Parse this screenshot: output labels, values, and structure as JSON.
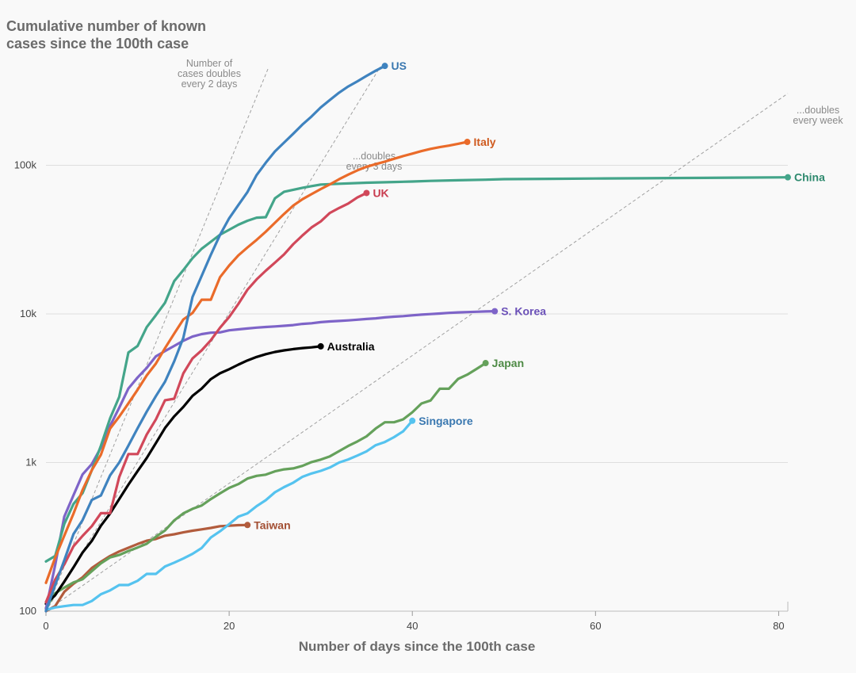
{
  "chart_data": {
    "type": "line",
    "title_lines": [
      "Cumulative number of known",
      "cases since the 100th case"
    ],
    "xlabel": "Number of days since the 100th case",
    "ylabel": "",
    "y_scale": "log",
    "xlim": [
      0,
      81
    ],
    "ylim": [
      100,
      500000
    ],
    "x_ticks": [
      0,
      20,
      40,
      60,
      80
    ],
    "x_tick_labels": [
      "0",
      "20",
      "40",
      "60",
      "80"
    ],
    "y_ticks": [
      100,
      1000,
      10000,
      100000
    ],
    "y_tick_labels": [
      "100",
      "1k",
      "10k",
      "100k"
    ],
    "grid": "horizontal",
    "reference_lines": [
      {
        "label": [
          "Number of",
          "cases doubles",
          "every 2 days"
        ],
        "doubling_days": 2
      },
      {
        "label": [
          "...doubles",
          "every 3 days"
        ],
        "doubling_days": 3
      },
      {
        "label": [
          "...doubles",
          "every week"
        ],
        "doubling_days": 7
      }
    ],
    "series": [
      {
        "name": "US",
        "color": "#3f83bf",
        "x": [
          0,
          1,
          2,
          3,
          4,
          5,
          6,
          7,
          8,
          9,
          10,
          11,
          12,
          13,
          14,
          15,
          16,
          17,
          18,
          19,
          20,
          21,
          22,
          23,
          24,
          25,
          26,
          27,
          28,
          29,
          30,
          31,
          32,
          33,
          34,
          35,
          36,
          37
        ],
        "y": [
          100,
          150,
          220,
          330,
          410,
          560,
          600,
          820,
          1000,
          1300,
          1700,
          2200,
          2800,
          3500,
          4800,
          6900,
          13000,
          18000,
          25000,
          34000,
          44000,
          54000,
          66000,
          86000,
          104000,
          124000,
          142000,
          163000,
          188000,
          213000,
          245000,
          275000,
          308000,
          339000,
          367000,
          399000,
          433000,
          466000
        ]
      },
      {
        "name": "Italy",
        "color": "#ea6b2a",
        "x": [
          0,
          1,
          2,
          3,
          4,
          5,
          6,
          7,
          8,
          9,
          10,
          11,
          12,
          13,
          14,
          15,
          16,
          17,
          18,
          19,
          20,
          21,
          22,
          23,
          24,
          25,
          26,
          27,
          28,
          29,
          30,
          31,
          32,
          33,
          34,
          35,
          36,
          37,
          38,
          39,
          40,
          41,
          42,
          43,
          44,
          45,
          46
        ],
        "y": [
          155,
          229,
          322,
          453,
          655,
          888,
          1128,
          1694,
          2036,
          2502,
          3089,
          3858,
          4636,
          5883,
          7375,
          9172,
          10149,
          12462,
          12462,
          17660,
          21157,
          24747,
          27980,
          31506,
          35713,
          41035,
          47021,
          53578,
          59138,
          63927,
          69176,
          74386,
          80589,
          86498,
          92472,
          97689,
          101739,
          105792,
          110574,
          115242,
          119827,
          124632,
          128948,
          132547,
          135586,
          139422,
          143626
        ]
      },
      {
        "name": "China",
        "color": "#44a58a",
        "x": [
          0,
          1,
          2,
          3,
          4,
          5,
          6,
          7,
          8,
          9,
          10,
          11,
          12,
          13,
          14,
          15,
          16,
          17,
          18,
          19,
          20,
          21,
          22,
          23,
          24,
          25,
          26,
          27,
          28,
          29,
          30,
          31,
          32,
          35,
          38,
          40,
          42,
          45,
          48,
          50,
          55,
          60,
          65,
          70,
          75,
          81
        ],
        "y": [
          216,
          235,
          386,
          526,
          623,
          887,
          1297,
          1985,
          2761,
          5502,
          6087,
          8141,
          9802,
          11891,
          16630,
          19716,
          23707,
          27440,
          30587,
          34110,
          36814,
          39829,
          42354,
          44386,
          44759,
          59895,
          66358,
          68413,
          70513,
          72434,
          74211,
          74619,
          75077,
          76288,
          77150,
          77780,
          78500,
          79300,
          80000,
          80700,
          81100,
          81500,
          81800,
          82200,
          82600,
          83000
        ]
      },
      {
        "name": "UK",
        "color": "#d1485a",
        "x": [
          0,
          1,
          2,
          3,
          4,
          5,
          6,
          7,
          8,
          9,
          10,
          11,
          12,
          13,
          14,
          15,
          16,
          17,
          18,
          19,
          20,
          21,
          22,
          23,
          24,
          25,
          26,
          27,
          28,
          29,
          30,
          31,
          32,
          33,
          34,
          35
        ],
        "y": [
          115,
          163,
          206,
          273,
          321,
          373,
          456,
          456,
          798,
          1140,
          1140,
          1543,
          1950,
          2626,
          2689,
          3983,
          5018,
          5683,
          6650,
          8077,
          9529,
          11658,
          14543,
          17089,
          19522,
          22141,
          25150,
          29474,
          33718,
          38168,
          41903,
          47806,
          51608,
          55242,
          60733,
          65077
        ]
      },
      {
        "name": "S. Korea",
        "color": "#7e64c8",
        "x": [
          0,
          1,
          2,
          3,
          4,
          5,
          6,
          7,
          8,
          9,
          10,
          11,
          12,
          13,
          14,
          15,
          16,
          17,
          18,
          19,
          20,
          21,
          22,
          23,
          24,
          25,
          26,
          27,
          28,
          29,
          30,
          31,
          32,
          33,
          34,
          35,
          36,
          37,
          38,
          39,
          40,
          41,
          42,
          43,
          44,
          45,
          46,
          47,
          48,
          49
        ],
        "y": [
          104,
          204,
          433,
          602,
          833,
          977,
          1261,
          1766,
          2337,
          3150,
          3736,
          4335,
          5186,
          5621,
          6088,
          6593,
          7041,
          7313,
          7478,
          7513,
          7755,
          7869,
          7979,
          8086,
          8162,
          8236,
          8320,
          8413,
          8565,
          8652,
          8799,
          8897,
          8961,
          9037,
          9137,
          9241,
          9332,
          9478,
          9583,
          9661,
          9786,
          9887,
          9976,
          10062,
          10156,
          10237,
          10284,
          10331,
          10384,
          10423
        ]
      },
      {
        "name": "Australia",
        "color": "#000000",
        "x": [
          0,
          1,
          2,
          3,
          4,
          5,
          6,
          7,
          8,
          9,
          10,
          11,
          12,
          13,
          14,
          15,
          16,
          17,
          18,
          19,
          20,
          21,
          22,
          23,
          24,
          25,
          26,
          27,
          28,
          29,
          30
        ],
        "y": [
          112,
          128,
          158,
          197,
          248,
          297,
          376,
          454,
          568,
          710,
          876,
          1072,
          1352,
          1709,
          2044,
          2364,
          2810,
          3143,
          3640,
          3984,
          4245,
          4559,
          4862,
          5136,
          5358,
          5548,
          5687,
          5795,
          5887,
          5956,
          6052
        ]
      },
      {
        "name": "Japan",
        "color": "#65a15b",
        "x": [
          0,
          1,
          2,
          3,
          4,
          5,
          6,
          7,
          8,
          9,
          10,
          11,
          12,
          13,
          14,
          15,
          16,
          17,
          18,
          19,
          20,
          21,
          22,
          23,
          24,
          25,
          26,
          27,
          28,
          29,
          30,
          31,
          32,
          33,
          34,
          35,
          36,
          37,
          38,
          39,
          40,
          41,
          42,
          43,
          44,
          45,
          46,
          47,
          48
        ],
        "y": [
          105,
          132,
          144,
          156,
          164,
          186,
          210,
          230,
          239,
          254,
          268,
          284,
          317,
          349,
          408,
          455,
          488,
          514,
          568,
          620,
          675,
          716,
          780,
          814,
          829,
          873,
          900,
          913,
          950,
          1007,
          1046,
          1101,
          1193,
          1292,
          1387,
          1499,
          1693,
          1866,
          1866,
          1953,
          2178,
          2495,
          2617,
          3139,
          3139,
          3654,
          3906,
          4257,
          4667
        ]
      },
      {
        "name": "Singapore",
        "color": "#55c3ef",
        "x": [
          0,
          1,
          2,
          3,
          4,
          5,
          6,
          7,
          8,
          9,
          10,
          11,
          12,
          13,
          14,
          15,
          16,
          17,
          18,
          19,
          20,
          21,
          22,
          23,
          24,
          25,
          26,
          27,
          28,
          29,
          30,
          31,
          32,
          33,
          34,
          35,
          36,
          37,
          38,
          39,
          40
        ],
        "y": [
          102,
          106,
          108,
          110,
          110,
          117,
          130,
          138,
          150,
          150,
          160,
          178,
          178,
          200,
          212,
          226,
          243,
          266,
          313,
          345,
          385,
          432,
          455,
          509,
          558,
          631,
          683,
          732,
          802,
          844,
          879,
          926,
          1000,
          1049,
          1114,
          1189,
          1309,
          1375,
          1481,
          1623,
          1910
        ]
      },
      {
        "name": "Taiwan",
        "color": "#b25c3d",
        "x": [
          0,
          1,
          2,
          3,
          4,
          5,
          6,
          7,
          8,
          9,
          10,
          11,
          12,
          13,
          14,
          15,
          16,
          17,
          18,
          19,
          20,
          21,
          22
        ],
        "y": [
          100,
          108,
          135,
          153,
          169,
          195,
          215,
          235,
          252,
          267,
          283,
          298,
          306,
          322,
          329,
          339,
          348,
          355,
          363,
          373,
          376,
          379,
          380
        ]
      }
    ]
  }
}
